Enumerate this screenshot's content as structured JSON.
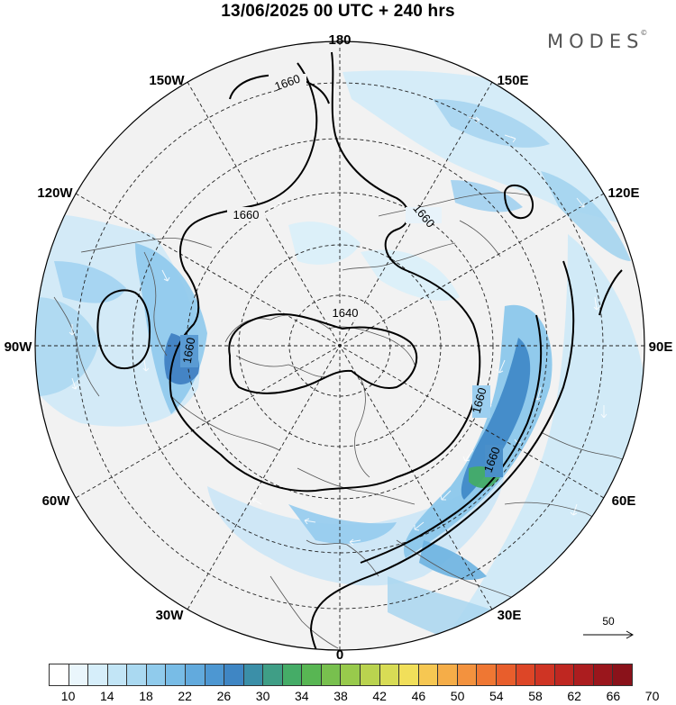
{
  "title": "13/06/2025  00 UTC  + 240 hrs",
  "brand": "MODES",
  "brand_mark": "©",
  "longitude_labels": {
    "lon_180": "180",
    "lon_150E": "150E",
    "lon_120E": "120E",
    "lon_90E": "90E",
    "lon_60E": "60E",
    "lon_30E": "30E",
    "lon_0": "0",
    "lon_30W": "30W",
    "lon_60W": "60W",
    "lon_90W": "90W",
    "lon_120W": "120W",
    "lon_150W": "150W"
  },
  "contour_labels": {
    "label_a": "1660",
    "label_b": "1660",
    "label_c": "1660",
    "label_d": "1640",
    "label_e": "1660",
    "label_f": "1660",
    "label_g": "1660"
  },
  "vector_reference": "50",
  "colorbar": {
    "colors": [
      "#ffffff",
      "#eaf6fc",
      "#d6eefa",
      "#c2e5f6",
      "#aad9f1",
      "#90cbec",
      "#78bce6",
      "#62aadd",
      "#4d97d2",
      "#3f86c4",
      "#3b8fa8",
      "#3f9e86",
      "#45ac67",
      "#58b653",
      "#78c04e",
      "#98ca4c",
      "#bad34f",
      "#d8dc55",
      "#f1df5a",
      "#f6c752",
      "#f5ad48",
      "#f3923e",
      "#ef7733",
      "#e85e2c",
      "#dd4627",
      "#cf3424",
      "#bf2721",
      "#ac1d1f",
      "#9a161c",
      "#8a121a"
    ],
    "ticks": [
      "10",
      "14",
      "18",
      "22",
      "26",
      "30",
      "34",
      "38",
      "42",
      "46",
      "50",
      "54",
      "58",
      "62",
      "66",
      "70"
    ]
  }
}
